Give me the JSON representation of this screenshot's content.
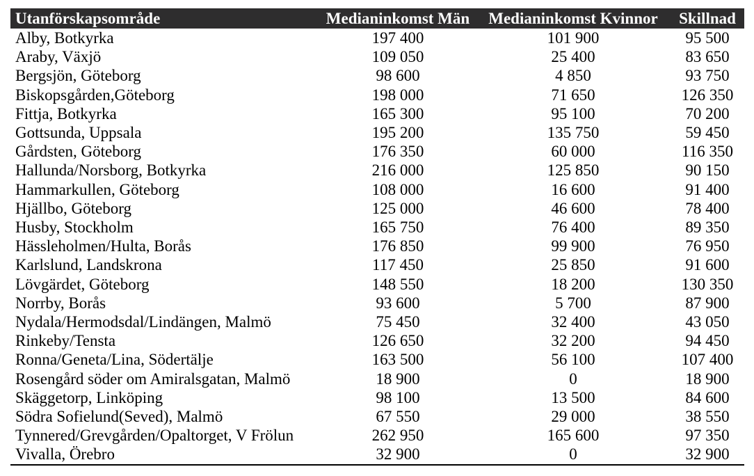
{
  "table": {
    "columns": [
      "Utanförskapsområde",
      "Medianinkomst Män",
      "Medianinkomst Kvinnor",
      "Skillnad"
    ],
    "rows": [
      [
        "Alby, Botkyrka",
        "197 400",
        "101 900",
        "95 500"
      ],
      [
        "Araby, Växjö",
        "109 050",
        "25 400",
        "83 650"
      ],
      [
        "Bergsjön, Göteborg",
        "98 600",
        "4 850",
        "93 750"
      ],
      [
        "Biskopsgården,Göteborg",
        "198 000",
        "71 650",
        "126 350"
      ],
      [
        "Fittja, Botkyrka",
        "165 300",
        "95 100",
        "70 200"
      ],
      [
        "Gottsunda, Uppsala",
        "195 200",
        "135 750",
        "59 450"
      ],
      [
        "Gårdsten, Göteborg",
        "176 350",
        "60 000",
        "116 350"
      ],
      [
        "Hallunda/Norsborg, Botkyrka",
        "216 000",
        "125 850",
        "90 150"
      ],
      [
        "Hammarkullen, Göteborg",
        "108 000",
        "16 600",
        "91 400"
      ],
      [
        "Hjällbo, Göteborg",
        "125 000",
        "46 600",
        "78 400"
      ],
      [
        "Husby, Stockholm",
        "165 750",
        "76 400",
        "89 350"
      ],
      [
        "Hässleholmen/Hulta, Borås",
        "176 850",
        "99 900",
        "76 950"
      ],
      [
        "Karlslund, Landskrona",
        "117 450",
        "25 850",
        "91 600"
      ],
      [
        "Lövgärdet, Göteborg",
        "148 550",
        "18 200",
        "130 350"
      ],
      [
        "Norrby, Borås",
        "93 600",
        "5 700",
        "87 900"
      ],
      [
        "Nydala/Hermodsdal/Lindängen, Malmö",
        "75 450",
        "32 400",
        "43 050"
      ],
      [
        "Rinkeby/Tensta",
        "126 650",
        "32 200",
        "94 450"
      ],
      [
        "Ronna/Geneta/Lina, Södertälje",
        "163 500",
        "56 100",
        "107 400"
      ],
      [
        "Rosengård söder om Amiralsgatan, Malmö",
        "18 900",
        "0",
        "18 900"
      ],
      [
        "Skäggetorp, Linköping",
        "98 100",
        "13 500",
        "84 600"
      ],
      [
        "Södra Sofielund(Seved), Malmö",
        "67 550",
        "29 000",
        "38 550"
      ],
      [
        "Tynnered/Grevgården/Opaltorget, V Frölun",
        "262 950",
        "165 600",
        "97 350"
      ],
      [
        "Vivalla, Örebro",
        "32 900",
        "0",
        "32 900"
      ]
    ]
  },
  "colors": {
    "header_background": "#2e2d2e",
    "header_text": "#ffffff",
    "body_text": "#000000",
    "page_background": "#ffffff",
    "bottom_rule": "#000000"
  }
}
